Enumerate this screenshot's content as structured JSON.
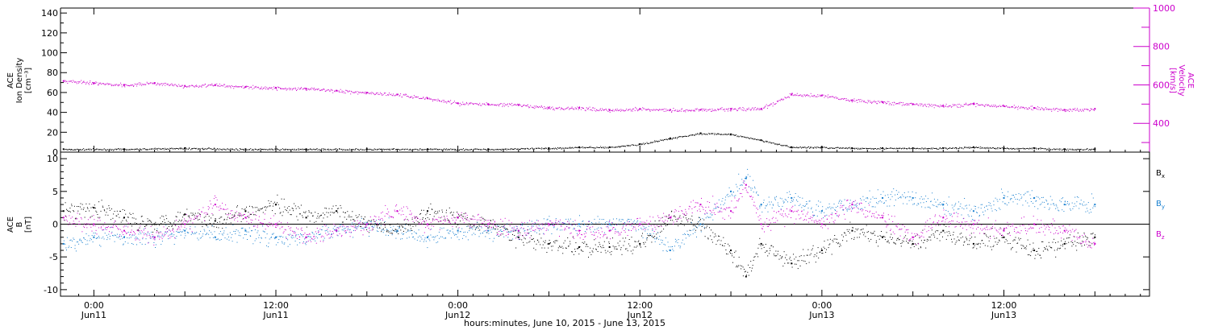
{
  "x_axis": {
    "caption": "hours:minutes, June 10, 2015 - June 13, 2015",
    "ticks": [
      {
        "hours": 24,
        "time": "0:00",
        "date": "Jun11"
      },
      {
        "hours": 36,
        "time": "12:00",
        "date": "Jun11"
      },
      {
        "hours": 48,
        "time": "0:00",
        "date": "Jun12"
      },
      {
        "hours": 60,
        "time": "12:00",
        "date": "Jun12"
      },
      {
        "hours": 72,
        "time": "0:00",
        "date": "Jun13"
      },
      {
        "hours": 84,
        "time": "12:00",
        "date": "Jun13"
      }
    ],
    "range_hours": [
      21.8,
      93.6
    ]
  },
  "chart_data": [
    {
      "type": "scatter",
      "panel": "top",
      "ylabel_left": [
        "ACE",
        "Ion Density",
        "[cm⁻³]"
      ],
      "ylabel_right": [
        "ACE",
        "Velocity",
        "[km/s]"
      ],
      "ylim_left": [
        0,
        145
      ],
      "yticks_left": [
        0,
        20,
        40,
        60,
        80,
        100,
        120,
        140
      ],
      "ylim_right": [
        250,
        1000
      ],
      "yticks_right": [
        400,
        600,
        800,
        1000
      ],
      "series": [
        {
          "axis": "left",
          "color": "#000000",
          "x": [
            22,
            26,
            30,
            34,
            38,
            42,
            46,
            50,
            54,
            56,
            58,
            60,
            62,
            64,
            66,
            68,
            70,
            72,
            74,
            76,
            78,
            80,
            82,
            84,
            86,
            88,
            90
          ],
          "y": [
            3,
            3,
            4,
            3,
            3,
            3,
            3,
            3,
            4,
            5,
            5,
            8,
            14,
            19,
            18,
            12,
            5,
            5,
            4,
            4,
            4,
            4,
            5,
            4,
            4,
            3,
            3
          ]
        },
        {
          "axis": "right",
          "color": "#cc00cc",
          "x": [
            22,
            24,
            26,
            28,
            30,
            32,
            34,
            36,
            38,
            40,
            42,
            44,
            46,
            48,
            50,
            52,
            54,
            56,
            58,
            60,
            62,
            64,
            66,
            68,
            70,
            72,
            74,
            76,
            78,
            80,
            82,
            84,
            86,
            88,
            90
          ],
          "y": [
            620,
            610,
            600,
            610,
            595,
            600,
            590,
            585,
            580,
            570,
            560,
            550,
            530,
            505,
            500,
            495,
            480,
            480,
            470,
            475,
            470,
            470,
            475,
            475,
            550,
            545,
            520,
            510,
            500,
            490,
            500,
            490,
            480,
            470,
            475
          ]
        }
      ]
    },
    {
      "type": "scatter",
      "panel": "bottom",
      "ylabel": [
        "ACE",
        "B",
        "[nT]"
      ],
      "ylim": [
        -11,
        11
      ],
      "yticks": [
        -10,
        -5,
        0,
        5,
        10
      ],
      "series": [
        {
          "name": "B",
          "sub": "x",
          "color": "#000000",
          "x": [
            22,
            24,
            26,
            28,
            30,
            32,
            34,
            36,
            38,
            40,
            42,
            44,
            46,
            48,
            50,
            52,
            54,
            56,
            58,
            60,
            62,
            64,
            66,
            67,
            68,
            70,
            72,
            74,
            76,
            78,
            80,
            82,
            84,
            86,
            88,
            90
          ],
          "y": [
            2,
            2.5,
            1,
            0,
            1.5,
            0.5,
            2,
            3,
            1,
            2,
            0,
            -1,
            2,
            1,
            0,
            -2,
            -3,
            -3.5,
            -3.5,
            -3,
            1,
            0,
            -4,
            -8,
            -3,
            -6,
            -4,
            -1,
            -2,
            -3,
            -1,
            -3,
            -2,
            -4,
            -3,
            -2
          ]
        },
        {
          "name": "B",
          "sub": "y",
          "color": "#1a80d0",
          "x": [
            22,
            24,
            26,
            28,
            30,
            32,
            34,
            36,
            38,
            40,
            42,
            44,
            46,
            48,
            50,
            52,
            54,
            56,
            58,
            60,
            62,
            64,
            66,
            67,
            68,
            70,
            72,
            74,
            76,
            78,
            80,
            82,
            84,
            86,
            88,
            90
          ],
          "y": [
            -3,
            -2,
            -2,
            -2,
            -1,
            -2,
            -1,
            -2,
            -2,
            -1,
            0,
            -1,
            -2,
            -1,
            -1,
            -1,
            0,
            0,
            0,
            0,
            -4,
            0,
            5,
            7,
            3,
            4,
            2,
            3,
            4,
            4,
            3,
            2,
            4,
            4,
            3,
            3
          ]
        },
        {
          "name": "B",
          "sub": "z",
          "color": "#cc00cc",
          "x": [
            22,
            24,
            26,
            28,
            30,
            32,
            34,
            36,
            38,
            40,
            42,
            44,
            46,
            48,
            50,
            52,
            54,
            56,
            58,
            60,
            62,
            64,
            66,
            67,
            68,
            70,
            72,
            74,
            76,
            78,
            80,
            82,
            84,
            86,
            88,
            90
          ],
          "y": [
            1,
            0,
            -1,
            -2,
            0,
            3,
            1,
            0,
            -2,
            -1,
            0,
            2,
            0,
            1,
            0,
            -1,
            0,
            -1,
            -1,
            0,
            1,
            3,
            2,
            6,
            0,
            2,
            0,
            3,
            1,
            -2,
            1,
            0,
            -1,
            0,
            -1,
            -3
          ]
        }
      ]
    }
  ]
}
